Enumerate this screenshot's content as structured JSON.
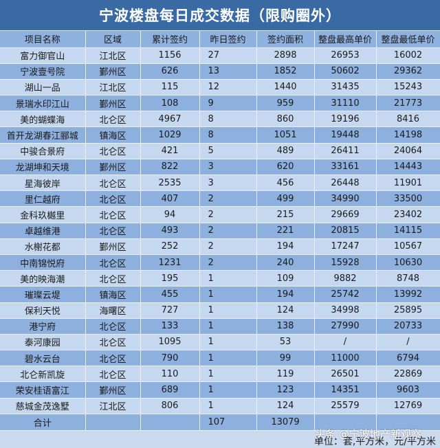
{
  "title": "宁波楼盘每日成交数据（限购圈外）",
  "colors": {
    "title_bg": "#3a6aa3",
    "header_bg": "#8fb1df",
    "row_light": "#c6d8ef",
    "row_dark": "#8db0de"
  },
  "table": {
    "headers": [
      "项目名称",
      "区域",
      "累计签约",
      "昨日签约",
      "签约面积",
      "整盘最高单价",
      "整盘最低单价"
    ],
    "rows": [
      {
        "name": "富力御官山",
        "district": "江北区",
        "total_signed": "1156",
        "yesterday_signed": "27",
        "area": "2898",
        "max_price": "26953",
        "min_price": "16002"
      },
      {
        "name": "宁波壹号院",
        "district": "鄞州区",
        "total_signed": "626",
        "yesterday_signed": "13",
        "area": "1852",
        "max_price": "50602",
        "min_price": "29362"
      },
      {
        "name": "湖山一品",
        "district": "江北区",
        "total_signed": "115",
        "yesterday_signed": "12",
        "area": "1440",
        "max_price": "31435",
        "min_price": "15243"
      },
      {
        "name": "景瑞水印江山",
        "district": "鄞州区",
        "total_signed": "108",
        "yesterday_signed": "9",
        "area": "959",
        "max_price": "31110",
        "min_price": "21773"
      },
      {
        "name": "美的蝴蝶海",
        "district": "北仑区",
        "total_signed": "4967",
        "yesterday_signed": "8",
        "area": "860",
        "max_price": "19196",
        "min_price": "8416"
      },
      {
        "name": "首开龙湖春江郦城",
        "district": "镇海区",
        "total_signed": "1029",
        "yesterday_signed": "8",
        "area": "1051",
        "max_price": "19448",
        "min_price": "14198"
      },
      {
        "name": "中骏合景府",
        "district": "北仑区",
        "total_signed": "421",
        "yesterday_signed": "5",
        "area": "489",
        "max_price": "26411",
        "min_price": "24064"
      },
      {
        "name": "龙湖坤和天境",
        "district": "鄞州区",
        "total_signed": "822",
        "yesterday_signed": "3",
        "area": "620",
        "max_price": "33161",
        "min_price": "14443"
      },
      {
        "name": "星海彼岸",
        "district": "北仑区",
        "total_signed": "2535",
        "yesterday_signed": "3",
        "area": "456",
        "max_price": "26448",
        "min_price": "11901"
      },
      {
        "name": "里仁越府",
        "district": "北仑区",
        "total_signed": "407",
        "yesterday_signed": "2",
        "area": "499",
        "max_price": "34990",
        "min_price": "33500"
      },
      {
        "name": "金科玖樾里",
        "district": "北仑区",
        "total_signed": "94",
        "yesterday_signed": "2",
        "area": "215",
        "max_price": "29669",
        "min_price": "23402"
      },
      {
        "name": "卓越维港",
        "district": "北仑区",
        "total_signed": "493",
        "yesterday_signed": "2",
        "area": "221",
        "max_price": "20815",
        "min_price": "14115"
      },
      {
        "name": "水榭花都",
        "district": "鄞州区",
        "total_signed": "252",
        "yesterday_signed": "2",
        "area": "194",
        "max_price": "17247",
        "min_price": "10567"
      },
      {
        "name": "中南锦悦府",
        "district": "北仑区",
        "total_signed": "1231",
        "yesterday_signed": "2",
        "area": "240",
        "max_price": "15928",
        "min_price": "10630"
      },
      {
        "name": "美的映海潮",
        "district": "北仑区",
        "total_signed": "195",
        "yesterday_signed": "1",
        "area": "109",
        "max_price": "9882",
        "min_price": "8748"
      },
      {
        "name": "璀璨云堤",
        "district": "镇海区",
        "total_signed": "455",
        "yesterday_signed": "1",
        "area": "194",
        "max_price": "25742",
        "min_price": "13992"
      },
      {
        "name": "保利天悦",
        "district": "海曙区",
        "total_signed": "727",
        "yesterday_signed": "1",
        "area": "124",
        "max_price": "34998",
        "min_price": "25895"
      },
      {
        "name": "港宁府",
        "district": "北仑区",
        "total_signed": "133",
        "yesterday_signed": "1",
        "area": "138",
        "max_price": "27990",
        "min_price": "20733"
      },
      {
        "name": "泰河康园",
        "district": "北仑区",
        "total_signed": "1095",
        "yesterday_signed": "1",
        "area": "53",
        "max_price": "/",
        "min_price": "/"
      },
      {
        "name": "碧水云台",
        "district": "北仑区",
        "total_signed": "790",
        "yesterday_signed": "1",
        "area": "99",
        "max_price": "11000",
        "min_price": "6794"
      },
      {
        "name": "北仑新凯旋",
        "district": "北仑区",
        "total_signed": "110",
        "yesterday_signed": "1",
        "area": "119",
        "max_price": "26501",
        "min_price": "22869"
      },
      {
        "name": "荣安桂语富江",
        "district": "鄞州区",
        "total_signed": "689",
        "yesterday_signed": "1",
        "area": "123",
        "max_price": "14351",
        "min_price": "9603"
      },
      {
        "name": "慈城金茂逸墅",
        "district": "江北区",
        "total_signed": "806",
        "yesterday_signed": "1",
        "area": "124",
        "max_price": "25579",
        "min_price": "12769"
      }
    ],
    "total": {
      "label": "合计",
      "district": "",
      "total_signed": "",
      "yesterday_signed": "107",
      "area": "13079",
      "max_price": "",
      "min_price": ""
    }
  },
  "unit_note": "单位：套,平方米，元/平方米",
  "watermark": "头条 @宁波地产新观察"
}
